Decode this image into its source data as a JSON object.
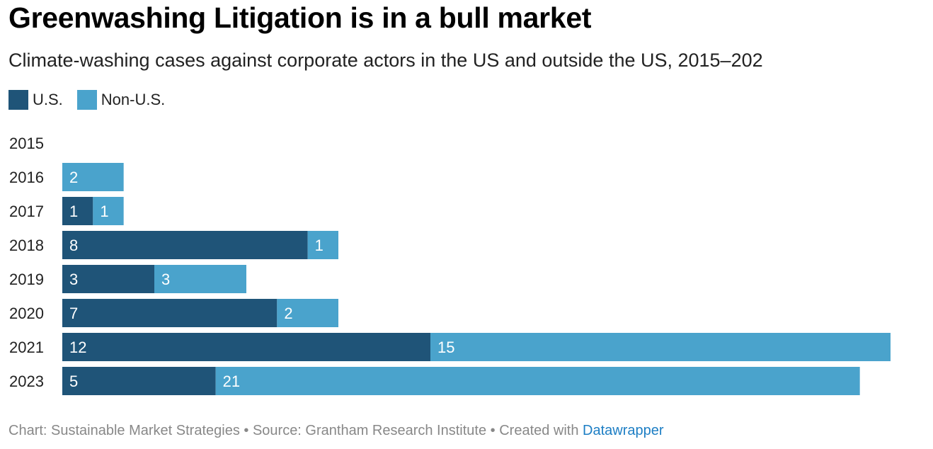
{
  "colors": {
    "us": "#1f5478",
    "non_us": "#4aa3cc",
    "text_light": "#ffffff"
  },
  "footer": {
    "text": "Chart: Sustainable Market Strategies • Source: Grantham Research Institute  • Created with ",
    "link": "Datawrapper"
  },
  "chart_data": {
    "type": "bar",
    "orientation": "horizontal",
    "stacked": true,
    "title": "Greenwashing Litigation is in a bull market",
    "subtitle": "Climate-washing cases against corporate actors in the US and outside the US, 2015–202",
    "legend_position": "top-left",
    "grid": false,
    "categories": [
      "2015",
      "2016",
      "2017",
      "2018",
      "2019",
      "2020",
      "2021",
      "2023"
    ],
    "series": [
      {
        "name": "U.S.",
        "key": "us",
        "values": [
          0,
          0,
          1,
          8,
          3,
          7,
          12,
          5
        ]
      },
      {
        "name": "Non-U.S.",
        "key": "non_us",
        "values": [
          0,
          2,
          1,
          1,
          3,
          2,
          15,
          21
        ]
      }
    ],
    "xlim": [
      0,
      27
    ]
  }
}
